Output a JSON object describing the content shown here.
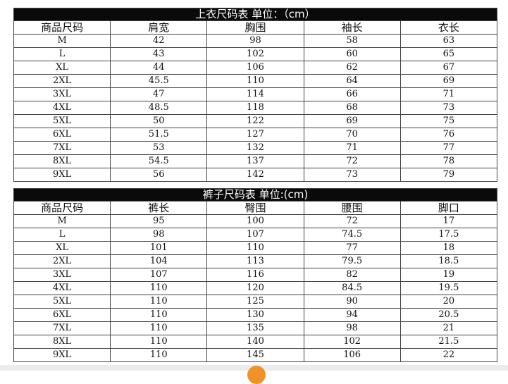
{
  "tops": {
    "title": "上衣尺码表 单位：（cm）",
    "headers": [
      "商品尺码",
      "肩宽",
      "胸围",
      "袖长",
      "衣长"
    ],
    "rows": [
      [
        "M",
        "42",
        "98",
        "58",
        "63"
      ],
      [
        "L",
        "43",
        "102",
        "60",
        "65"
      ],
      [
        "XL",
        "44",
        "106",
        "62",
        "67"
      ],
      [
        "2XL",
        "45.5",
        "110",
        "64",
        "69"
      ],
      [
        "3XL",
        "47",
        "114",
        "66",
        "71"
      ],
      [
        "4XL",
        "48.5",
        "118",
        "68",
        "73"
      ],
      [
        "5XL",
        "50",
        "122",
        "69",
        "75"
      ],
      [
        "6XL",
        "51.5",
        "127",
        "70",
        "76"
      ],
      [
        "7XL",
        "53",
        "132",
        "71",
        "77"
      ],
      [
        "8XL",
        "54.5",
        "137",
        "72",
        "78"
      ],
      [
        "9XL",
        "56",
        "142",
        "73",
        "79"
      ]
    ]
  },
  "pants": {
    "title": "裤子尺码表 单位:(cm)",
    "headers": [
      "商品尺码",
      "裤长",
      "臀围",
      "腰围",
      "脚口"
    ],
    "rows": [
      [
        "M",
        "95",
        "100",
        "72",
        "17"
      ],
      [
        "L",
        "98",
        "107",
        "74.5",
        "17.5"
      ],
      [
        "XL",
        "101",
        "110",
        "77",
        "18"
      ],
      [
        "2XL",
        "104",
        "113",
        "79.5",
        "18.5"
      ],
      [
        "3XL",
        "107",
        "116",
        "82",
        "19"
      ],
      [
        "4XL",
        "110",
        "120",
        "84.5",
        "19.5"
      ],
      [
        "5XL",
        "110",
        "125",
        "90",
        "20"
      ],
      [
        "6XL",
        "110",
        "130",
        "94",
        "20.5"
      ],
      [
        "7XL",
        "110",
        "135",
        "98",
        "21"
      ],
      [
        "8XL",
        "110",
        "140",
        "102",
        "21.5"
      ],
      [
        "9XL",
        "110",
        "145",
        "106",
        "22"
      ]
    ]
  }
}
